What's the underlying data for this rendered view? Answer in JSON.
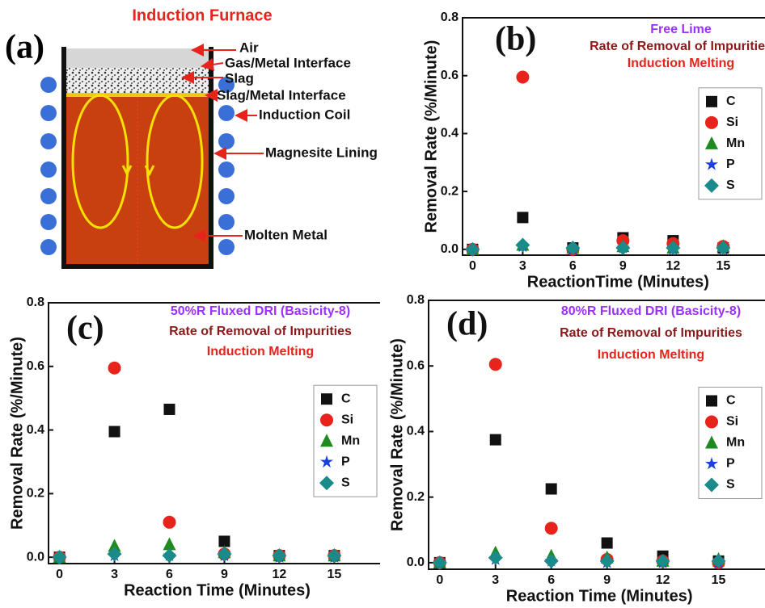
{
  "diagram": {
    "panel_label": "(a)",
    "title": "Induction Furnace",
    "labels": [
      "Air",
      "Gas/Metal Interface",
      "Slag",
      "Slag/Metal Interface",
      "Induction Coil",
      "Magnesite Lining",
      "Molten Metal"
    ]
  },
  "chart_data": [
    {
      "type": "scatter",
      "panel_label": "(b)",
      "annotations": [
        {
          "text": "Free Lime",
          "color": "#9b30ff"
        },
        {
          "text": "Rate of Removal of Impurities",
          "color": "#8b1a1a"
        },
        {
          "text": "Induction Melting",
          "color": "#e8231c"
        }
      ],
      "x_label": "ReactionTime (Minutes)",
      "y_label": "Removal Rate (%/Minute)",
      "x": [
        0,
        3,
        6,
        9,
        12,
        15
      ],
      "xlim": [
        -0.6,
        17.5
      ],
      "xticks": [
        0,
        3,
        6,
        9,
        12,
        15
      ],
      "ylim": [
        -0.02,
        0.8
      ],
      "yticks": [
        {
          "value": 0,
          "label": "0.0"
        },
        0.2,
        0.4,
        0.6,
        0.8
      ],
      "grid": false,
      "legend": "right",
      "series": [
        {
          "name": "C",
          "color": "#111111",
          "marker": "square",
          "values": [
            0,
            0.11,
            0.005,
            0.04,
            0.03,
            0.005
          ]
        },
        {
          "name": "Si",
          "color": "#e8231c",
          "marker": "circle",
          "values": [
            0,
            0.595,
            0,
            0.03,
            0.02,
            0.01
          ]
        },
        {
          "name": "Mn",
          "color": "#1f8a1f",
          "marker": "triangle",
          "values": [
            0,
            0.015,
            0.005,
            0.01,
            0.005,
            0.01
          ]
        },
        {
          "name": "P",
          "color": "#1a3fe0",
          "marker": "star",
          "values": [
            0,
            0.01,
            0,
            0.005,
            0,
            0
          ]
        },
        {
          "name": "S",
          "color": "#1a8a8a",
          "marker": "diamond",
          "values": [
            0,
            0.015,
            0.005,
            0.005,
            0.005,
            0.005
          ]
        }
      ]
    },
    {
      "type": "scatter",
      "panel_label": "(c)",
      "annotations": [
        {
          "text": "50%R Fluxed DRI (Basicity-8)",
          "color": "#9b30ff"
        },
        {
          "text": "Rate of Removal of Impurities",
          "color": "#8b1a1a"
        },
        {
          "text": "Induction Melting",
          "color": "#e8231c"
        }
      ],
      "x_label": "Reaction Time (Minutes)",
      "y_label": "Removal Rate (%/Minute)",
      "x": [
        0,
        3,
        6,
        9,
        12,
        15
      ],
      "xlim": [
        -0.6,
        17.5
      ],
      "xticks": [
        0,
        3,
        6,
        9,
        12,
        15
      ],
      "ylim": [
        -0.02,
        0.8
      ],
      "yticks": [
        {
          "value": 0,
          "label": "0.0"
        },
        0.2,
        0.4,
        0.6,
        0.8
      ],
      "grid": false,
      "legend": "right",
      "series": [
        {
          "name": "C",
          "color": "#111111",
          "marker": "square",
          "values": [
            0,
            0.395,
            0.465,
            0.05,
            0.005,
            0.005
          ]
        },
        {
          "name": "Si",
          "color": "#e8231c",
          "marker": "circle",
          "values": [
            0,
            0.595,
            0.11,
            0.01,
            0.005,
            0.005
          ]
        },
        {
          "name": "Mn",
          "color": "#1f8a1f",
          "marker": "triangle",
          "values": [
            0,
            0.035,
            0.04,
            0.015,
            0.005,
            0.005
          ]
        },
        {
          "name": "P",
          "color": "#1a3fe0",
          "marker": "star",
          "values": [
            0,
            0.005,
            0.005,
            0.005,
            0,
            0
          ]
        },
        {
          "name": "S",
          "color": "#1a8a8a",
          "marker": "diamond",
          "values": [
            0,
            0.01,
            0.005,
            0.01,
            0.005,
            0.005
          ]
        }
      ]
    },
    {
      "type": "scatter",
      "panel_label": "(d)",
      "annotations": [
        {
          "text": "80%R Fluxed DRI (Basicity-8)",
          "color": "#9b30ff"
        },
        {
          "text": "Rate of Removal of Impurities",
          "color": "#8b1a1a"
        },
        {
          "text": "Induction Melting",
          "color": "#e8231c"
        }
      ],
      "x_label": "Reaction Time (Minutes)",
      "y_label": "Removal Rate (%/Minute)",
      "x": [
        0,
        3,
        6,
        9,
        12,
        15
      ],
      "xlim": [
        -0.6,
        17.5
      ],
      "xticks": [
        0,
        3,
        6,
        9,
        12,
        15
      ],
      "ylim": [
        -0.02,
        0.8
      ],
      "yticks": [
        {
          "value": 0,
          "label": "0.0"
        },
        0.2,
        0.4,
        0.6,
        0.8
      ],
      "grid": false,
      "legend": "right",
      "series": [
        {
          "name": "C",
          "color": "#111111",
          "marker": "square",
          "values": [
            0,
            0.375,
            0.225,
            0.06,
            0.02,
            0.005
          ]
        },
        {
          "name": "Si",
          "color": "#e8231c",
          "marker": "circle",
          "values": [
            0,
            0.605,
            0.105,
            0.01,
            0.005,
            0
          ]
        },
        {
          "name": "Mn",
          "color": "#1f8a1f",
          "marker": "triangle",
          "values": [
            0,
            0.03,
            0.02,
            0.015,
            0.005,
            0.01
          ]
        },
        {
          "name": "P",
          "color": "#1a3fe0",
          "marker": "star",
          "values": [
            0,
            0.01,
            0.005,
            0,
            0,
            0
          ]
        },
        {
          "name": "S",
          "color": "#1a8a8a",
          "marker": "diamond",
          "values": [
            0,
            0.015,
            0.005,
            0.005,
            0.005,
            0.005
          ]
        }
      ]
    }
  ]
}
